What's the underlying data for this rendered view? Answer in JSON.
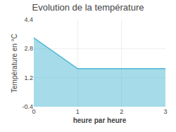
{
  "chart_data": {
    "type": "area",
    "title": "Evolution de la température",
    "xlabel": "heure par heure",
    "ylabel": "Température en °C",
    "x": [
      0,
      1,
      3
    ],
    "values": [
      3.4,
      1.7,
      1.7
    ],
    "color": "#4db8d4",
    "xlim": [
      0,
      3
    ],
    "ylim": [
      -0.4,
      4.4
    ],
    "xticks": [
      0,
      1,
      2,
      3
    ],
    "yticks": [
      -0.4,
      1.2,
      2.8,
      4.4
    ],
    "grid": true
  }
}
